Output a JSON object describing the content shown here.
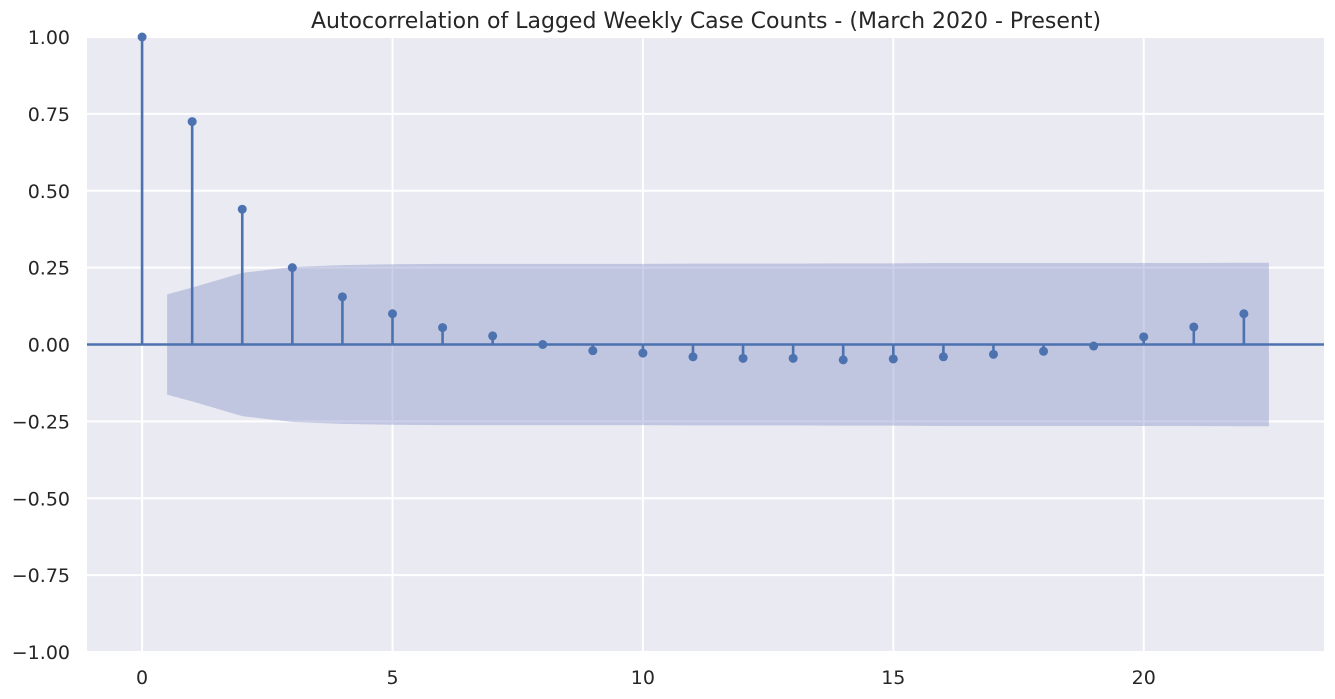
{
  "chart_data": {
    "type": "stem",
    "title": "Autocorrelation of Lagged Weekly Case Counts - (March 2020 - Present)",
    "xlabel": "",
    "ylabel": "",
    "xlim": [
      -1.1,
      23.6
    ],
    "ylim": [
      -1.0,
      1.0
    ],
    "x_ticks": [
      0,
      5,
      10,
      15,
      20
    ],
    "y_ticks": [
      1.0,
      0.75,
      0.5,
      0.25,
      0.0,
      -0.25,
      -0.5,
      -0.75,
      -1.0
    ],
    "x_tick_labels": [
      "0",
      "5",
      "10",
      "15",
      "20"
    ],
    "y_tick_labels": [
      "1.00",
      "0.75",
      "0.50",
      "0.25",
      "0.00",
      "−0.25",
      "−0.50",
      "−0.75",
      "−1.00"
    ],
    "grid": true,
    "lags": [
      0,
      1,
      2,
      3,
      4,
      5,
      6,
      7,
      8,
      9,
      10,
      11,
      12,
      13,
      14,
      15,
      16,
      17,
      18,
      19,
      20,
      21,
      22
    ],
    "values": [
      1.0,
      0.725,
      0.44,
      0.25,
      0.155,
      0.1,
      0.055,
      0.028,
      0.0,
      -0.02,
      -0.028,
      -0.04,
      -0.045,
      -0.045,
      -0.05,
      -0.047,
      -0.04,
      -0.032,
      -0.022,
      -0.005,
      0.025,
      0.057,
      0.1
    ],
    "confidence_band": {
      "x": [
        0.5,
        1,
        2,
        3,
        4,
        5,
        6,
        7,
        8,
        9,
        10,
        11,
        12,
        13,
        14,
        15,
        16,
        17,
        18,
        19,
        20,
        21,
        22,
        22.5
      ],
      "upper": [
        0.163,
        0.185,
        0.233,
        0.252,
        0.258,
        0.261,
        0.262,
        0.262,
        0.262,
        0.262,
        0.262,
        0.263,
        0.263,
        0.263,
        0.264,
        0.264,
        0.265,
        0.265,
        0.265,
        0.265,
        0.265,
        0.265,
        0.266,
        0.266
      ]
    },
    "colors": {
      "stem": "#4c72b0",
      "band": "#8592c8",
      "plot_bg": "#eaeaf2",
      "grid": "#ffffff"
    }
  }
}
